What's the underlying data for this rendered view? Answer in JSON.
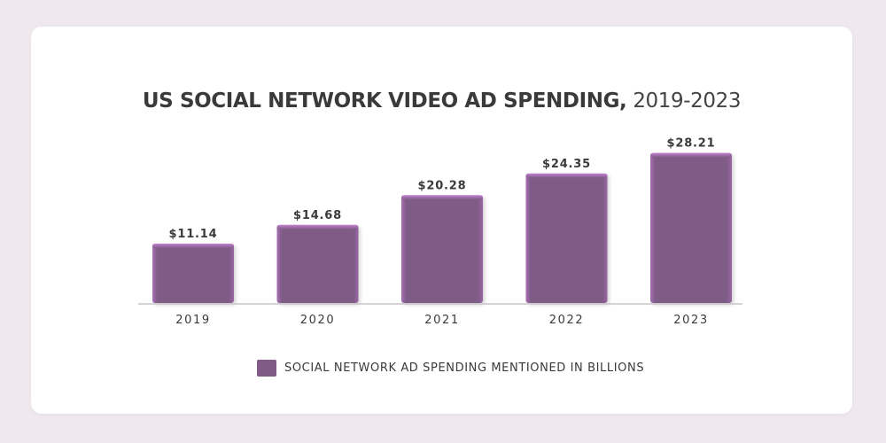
{
  "chart_data": {
    "type": "bar",
    "title_bold": "US SOCIAL NETWORK VIDEO AD SPENDING,",
    "title_range": "2019-2023",
    "categories": [
      "2019",
      "2020",
      "2021",
      "2022",
      "2023"
    ],
    "values": [
      11.14,
      14.68,
      20.28,
      24.35,
      28.21
    ],
    "value_labels": [
      "$11.14",
      "$14.68",
      "$20.28",
      "$24.35",
      "$28.21"
    ],
    "ylim": [
      0,
      30
    ],
    "xlabel": "",
    "ylabel": "",
    "grid": false,
    "legend": {
      "position": "bottom-center",
      "label": "SOCIAL NETWORK AD SPENDING MENTIONED IN BILLIONS"
    },
    "colors": {
      "bar": "#7f5b86",
      "bar_highlight": "#b074bd",
      "axis": "#c9c3c9",
      "text": "#3a3a3a"
    }
  }
}
